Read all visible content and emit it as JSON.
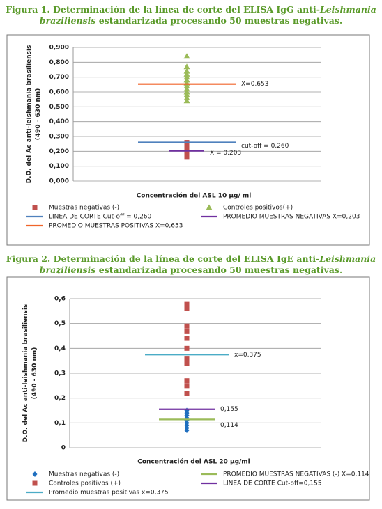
{
  "chart_data": [
    {
      "type": "scatter",
      "caption": [
        "Figura 1. Determinación de la línea de corte del ELISA IgG anti-",
        "Leishmania braziliensis",
        " estandarizada procesando 50 muestras negativas."
      ],
      "y_label": "D.O. del Ac anti-leishmania brasiliensis (490 - 630 nm)",
      "x_label": "Concentración del ASL  10 µg/ ml",
      "ylim": [
        0,
        0.9
      ],
      "yticks": [
        {
          "value": 0,
          "label": "0,000"
        },
        {
          "value": 0.1,
          "label": "0,100"
        },
        {
          "value": 0.2,
          "label": "0,200"
        },
        {
          "value": 0.3,
          "label": "0,300"
        },
        {
          "value": 0.4,
          "label": "0,400"
        },
        {
          "value": 0.5,
          "label": "0,500"
        },
        {
          "value": 0.6,
          "label": "0,600"
        },
        {
          "value": 0.7,
          "label": "0,700"
        },
        {
          "value": 0.8,
          "label": "0,800"
        },
        {
          "value": 0.9,
          "label": "0,900"
        }
      ],
      "grid": true,
      "series": [
        {
          "name": "Muestras negativas (-)",
          "color": "#c0504d",
          "marker": "square",
          "values": [
            0.16,
            0.17,
            0.18,
            0.19,
            0.2,
            0.21,
            0.22,
            0.23,
            0.24,
            0.25,
            0.26
          ]
        },
        {
          "name": "Controles positivos(+)",
          "color": "#9bbb59",
          "marker": "triangle",
          "values": [
            0.54,
            0.56,
            0.58,
            0.6,
            0.62,
            0.64,
            0.66,
            0.68,
            0.7,
            0.72,
            0.74,
            0.77,
            0.84
          ]
        },
        {
          "name": "LINEA DE CORTE Cut-off = 0,260",
          "color": "#4f81bd",
          "value": 0.26,
          "label": "cut-off = 0,260"
        },
        {
          "name": "PROMEDIO MUESTRAS NEGATIVAS X=0,203",
          "color": "#7030a0",
          "value": 0.203,
          "label": "X = 0,203"
        },
        {
          "name": "PROMEDIO MUESTRAS POSITIVAS X=0,653",
          "color": "#f0642a",
          "value": 0.653,
          "label": "X=0,653"
        }
      ]
    },
    {
      "type": "scatter",
      "caption": [
        "Figura 2. Determinación de la línea de corte del ELISA IgE anti-",
        "Leishmania braziliensis",
        " estandarizada procesando 50 muestras negativas."
      ],
      "y_label": "D.O. del Ac anti-leishmania brasiliensis (490 - 630 nm)",
      "x_label": "Concentración del ASL 20 µg/ml",
      "ylim": [
        0,
        0.6
      ],
      "yticks": [
        0,
        {
          "value": 0.1,
          "label": "0,1"
        },
        {
          "value": 0.2,
          "label": "0,2"
        },
        {
          "value": 0.3,
          "label": "0,3"
        },
        {
          "value": 0.4,
          "label": "0,4"
        },
        {
          "value": 0.5,
          "label": "0,5"
        },
        {
          "value": 0.6,
          "label": "0,6"
        }
      ],
      "grid": true,
      "series": [
        {
          "name": "Muestras negativas (-)",
          "color": "#1f6fbf",
          "marker": "diamond",
          "values": [
            0.07,
            0.08,
            0.09,
            0.1,
            0.11,
            0.12,
            0.13,
            0.14,
            0.15
          ]
        },
        {
          "name": "PROMEDIO MUESTRAS NEGATIVAS (-) X=0,114",
          "color": "#9bbb59",
          "value": 0.114,
          "label": "0,114"
        },
        {
          "name": "Controles positivos (+)",
          "color": "#c0504d",
          "marker": "square",
          "values": [
            0.22,
            0.25,
            0.27,
            0.34,
            0.36,
            0.4,
            0.44,
            0.47,
            0.49,
            0.56,
            0.58
          ]
        },
        {
          "name": "LINEA DE CORTE Cut-off=0,155",
          "color": "#7030a0",
          "value": 0.155,
          "label": "0,155"
        },
        {
          "name": "Promedio muestras positivas x=0,375",
          "color": "#4bacc6",
          "value": 0.375,
          "label": "x=0,375"
        }
      ]
    }
  ]
}
